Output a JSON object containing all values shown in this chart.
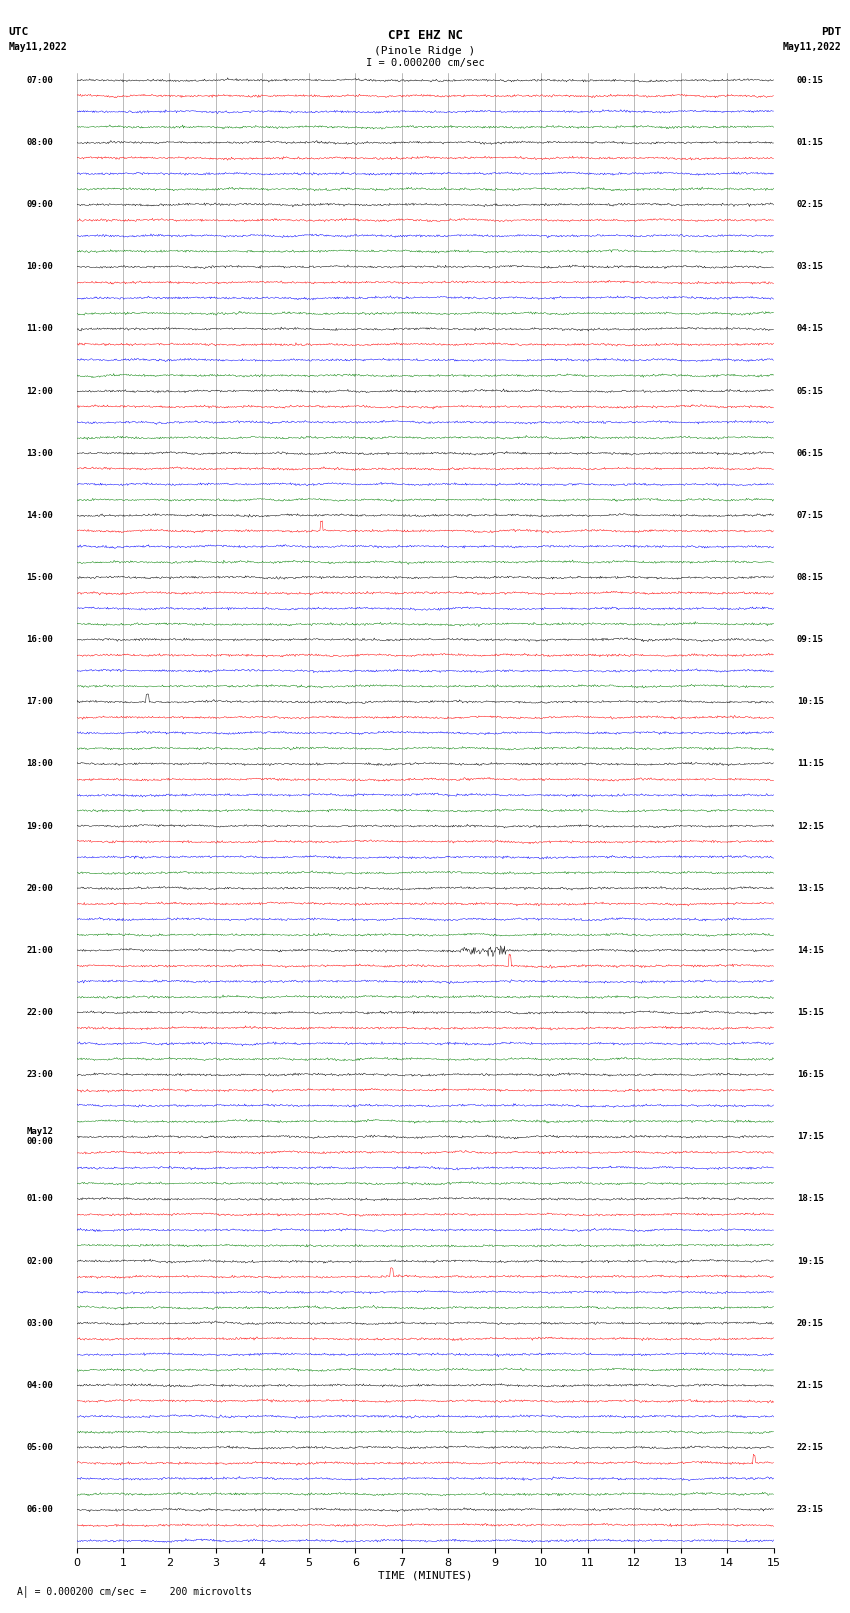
{
  "title_line1": "CPI EHZ NC",
  "title_line2": "(Pinole Ridge )",
  "scale_label": "I = 0.000200 cm/sec",
  "footer_label": "A│ = 0.000200 cm/sec =    200 microvolts",
  "utc_label_line1": "UTC",
  "utc_label_line2": "May11,2022",
  "pdt_label_line1": "PDT",
  "pdt_label_line2": "May11,2022",
  "xlabel": "TIME (MINUTES)",
  "bg_color": "#ffffff",
  "trace_colors": [
    "black",
    "red",
    "blue",
    "green"
  ],
  "left_labels": [
    "07:00",
    "08:00",
    "09:00",
    "10:00",
    "11:00",
    "12:00",
    "13:00",
    "14:00",
    "15:00",
    "16:00",
    "17:00",
    "18:00",
    "19:00",
    "20:00",
    "21:00",
    "22:00",
    "23:00",
    "May12\n00:00",
    "01:00",
    "02:00",
    "03:00",
    "04:00",
    "05:00",
    "06:00"
  ],
  "right_labels": [
    "00:15",
    "01:15",
    "02:15",
    "03:15",
    "04:15",
    "05:15",
    "06:15",
    "07:15",
    "08:15",
    "09:15",
    "10:15",
    "11:15",
    "12:15",
    "13:15",
    "14:15",
    "15:15",
    "16:15",
    "17:15",
    "18:15",
    "19:15",
    "20:15",
    "21:15",
    "22:15",
    "23:15"
  ],
  "n_hours": 23,
  "traces_per_hour": 4,
  "xmin": 0,
  "xmax": 15,
  "grid_color": "#888888",
  "grid_linewidth": 0.4,
  "noise_amplitude": 0.055,
  "seed": 42,
  "last_partial_traces": 3
}
